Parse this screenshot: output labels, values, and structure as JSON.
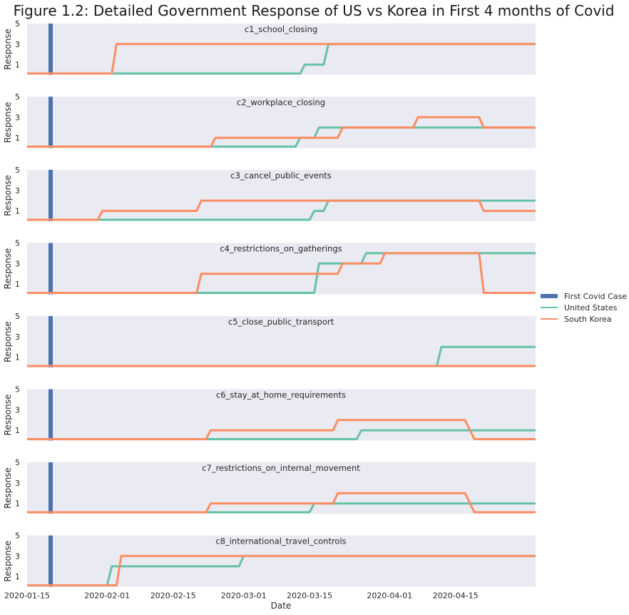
{
  "chart_data": {
    "type": "line",
    "title": "Figure 1.2: Detailed Government Response of US vs Korea in First 4 months of Covid",
    "xlabel": "Date",
    "ylabel": "Response",
    "x_range": [
      "2020-01-15",
      "2020-05-02"
    ],
    "xticks": [
      "2020-01-15",
      "2020-02-01",
      "2020-02-15",
      "2020-03-01",
      "2020-03-15",
      "2020-04-01",
      "2020-04-15"
    ],
    "ylim": [
      0,
      5
    ],
    "yticks": [
      "1",
      "3",
      "5"
    ],
    "first_case_date": "2020-01-20",
    "legend": {
      "placement": "right",
      "items": [
        "First Covid Case",
        "United States",
        "South Korea"
      ]
    },
    "colors": {
      "first_case": "#4c72b0",
      "us": "#66c2a5",
      "korea": "#fc8d62",
      "panel_bg": "#eaeaf2"
    },
    "panels": [
      {
        "name": "c1_school_closing",
        "us": [
          [
            "2020-01-15",
            0
          ],
          [
            "2020-03-13",
            0
          ],
          [
            "2020-03-14",
            1
          ],
          [
            "2020-03-18",
            1
          ],
          [
            "2020-03-19",
            3
          ],
          [
            "2020-05-02",
            3
          ]
        ],
        "korea": [
          [
            "2020-01-15",
            0
          ],
          [
            "2020-02-02",
            0
          ],
          [
            "2020-02-03",
            3
          ],
          [
            "2020-05-02",
            3
          ]
        ]
      },
      {
        "name": "c2_workplace_closing",
        "us": [
          [
            "2020-01-15",
            0
          ],
          [
            "2020-03-12",
            0
          ],
          [
            "2020-03-13",
            1
          ],
          [
            "2020-03-16",
            1
          ],
          [
            "2020-03-17",
            2
          ],
          [
            "2020-05-02",
            2
          ]
        ],
        "korea": [
          [
            "2020-01-15",
            0
          ],
          [
            "2020-02-23",
            0
          ],
          [
            "2020-02-24",
            1
          ],
          [
            "2020-03-21",
            1
          ],
          [
            "2020-03-22",
            2
          ],
          [
            "2020-04-06",
            2
          ],
          [
            "2020-04-07",
            3
          ],
          [
            "2020-04-20",
            3
          ],
          [
            "2020-04-21",
            2
          ],
          [
            "2020-05-02",
            2
          ]
        ]
      },
      {
        "name": "c3_cancel_public_events",
        "us": [
          [
            "2020-01-15",
            0
          ],
          [
            "2020-03-15",
            0
          ],
          [
            "2020-03-16",
            1
          ],
          [
            "2020-03-18",
            1
          ],
          [
            "2020-03-19",
            2
          ],
          [
            "2020-05-02",
            2
          ]
        ],
        "korea": [
          [
            "2020-01-15",
            0
          ],
          [
            "2020-01-30",
            0
          ],
          [
            "2020-01-31",
            1
          ],
          [
            "2020-02-20",
            1
          ],
          [
            "2020-02-21",
            2
          ],
          [
            "2020-04-20",
            2
          ],
          [
            "2020-04-21",
            1
          ],
          [
            "2020-05-02",
            1
          ]
        ]
      },
      {
        "name": "c4_restrictions_on_gatherings",
        "us": [
          [
            "2020-01-15",
            0
          ],
          [
            "2020-03-16",
            0
          ],
          [
            "2020-03-17",
            3
          ],
          [
            "2020-03-21",
            3
          ],
          [
            "2020-03-22",
            3
          ],
          [
            "2020-03-26",
            3
          ],
          [
            "2020-03-27",
            4
          ],
          [
            "2020-05-02",
            4
          ]
        ],
        "korea": [
          [
            "2020-01-15",
            0
          ],
          [
            "2020-02-20",
            0
          ],
          [
            "2020-02-21",
            2
          ],
          [
            "2020-03-21",
            2
          ],
          [
            "2020-03-22",
            3
          ],
          [
            "2020-03-30",
            3
          ],
          [
            "2020-03-31",
            4
          ],
          [
            "2020-04-20",
            4
          ],
          [
            "2020-04-21",
            0
          ],
          [
            "2020-05-02",
            0
          ]
        ]
      },
      {
        "name": "c5_close_public_transport",
        "us": [
          [
            "2020-01-15",
            0
          ],
          [
            "2020-04-11",
            0
          ],
          [
            "2020-04-12",
            2
          ],
          [
            "2020-05-02",
            2
          ]
        ],
        "korea": [
          [
            "2020-01-15",
            0
          ],
          [
            "2020-05-02",
            0
          ]
        ]
      },
      {
        "name": "c6_stay_at_home_requirements",
        "us": [
          [
            "2020-01-15",
            0
          ],
          [
            "2020-03-25",
            0
          ],
          [
            "2020-03-26",
            1
          ],
          [
            "2020-05-02",
            1
          ]
        ],
        "korea": [
          [
            "2020-01-15",
            0
          ],
          [
            "2020-02-22",
            0
          ],
          [
            "2020-02-23",
            1
          ],
          [
            "2020-03-20",
            1
          ],
          [
            "2020-03-21",
            2
          ],
          [
            "2020-04-17",
            2
          ],
          [
            "2020-04-19",
            0
          ],
          [
            "2020-05-02",
            0
          ]
        ]
      },
      {
        "name": "c7_restrictions_on_internal_movement",
        "us": [
          [
            "2020-01-15",
            0
          ],
          [
            "2020-03-15",
            0
          ],
          [
            "2020-03-16",
            1
          ],
          [
            "2020-05-02",
            1
          ]
        ],
        "korea": [
          [
            "2020-01-15",
            0
          ],
          [
            "2020-02-22",
            0
          ],
          [
            "2020-02-23",
            1
          ],
          [
            "2020-03-20",
            1
          ],
          [
            "2020-03-21",
            2
          ],
          [
            "2020-04-17",
            2
          ],
          [
            "2020-04-19",
            0
          ],
          [
            "2020-05-02",
            0
          ]
        ]
      },
      {
        "name": "c8_international_travel_controls",
        "us": [
          [
            "2020-01-15",
            0
          ],
          [
            "2020-02-01",
            0
          ],
          [
            "2020-02-02",
            2
          ],
          [
            "2020-02-29",
            2
          ],
          [
            "2020-03-01",
            3
          ],
          [
            "2020-05-02",
            3
          ]
        ],
        "korea": [
          [
            "2020-01-15",
            0
          ],
          [
            "2020-02-03",
            0
          ],
          [
            "2020-02-04",
            3
          ],
          [
            "2020-05-02",
            3
          ]
        ]
      }
    ]
  }
}
